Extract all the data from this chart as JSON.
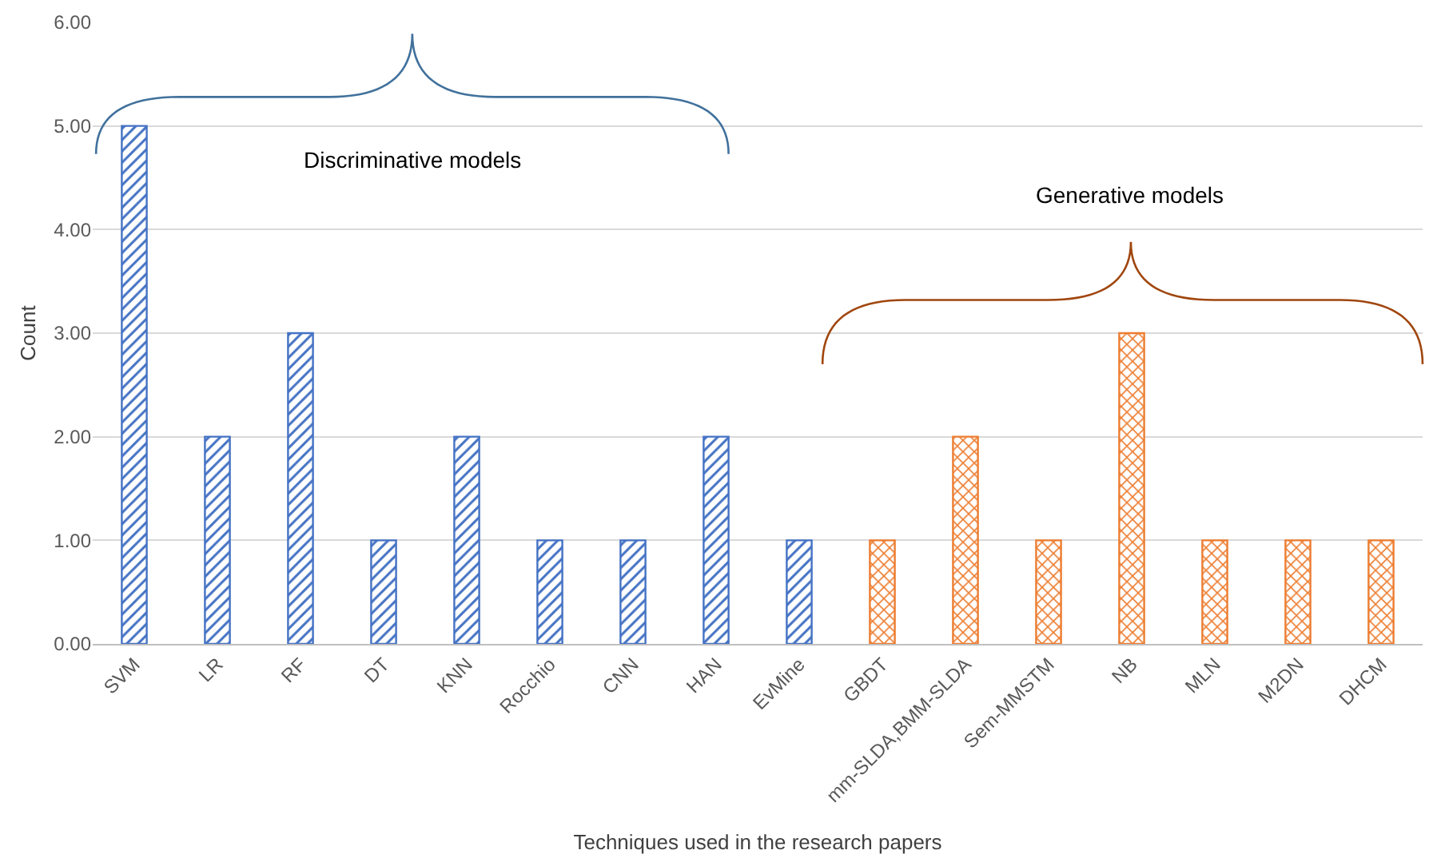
{
  "chart_data": {
    "type": "bar",
    "xlabel": "Techniques used in the research papers",
    "ylabel": "Count",
    "categories": [
      "SVM",
      "LR",
      "RF",
      "DT",
      "KNN",
      "Rocchio",
      "CNN",
      "HAN",
      "EvMine",
      "GBDT",
      "mm-SLDA,BMM-SLDA",
      "Sem-MMSTM",
      "NB",
      "MLN",
      "M2DN",
      "DHCM"
    ],
    "values": [
      5,
      2,
      3,
      1,
      2,
      1,
      1,
      2,
      1,
      1,
      2,
      1,
      3,
      1,
      1,
      1
    ],
    "colors": [
      "#4472c4",
      "#4472c4",
      "#4472c4",
      "#4472c4",
      "#4472c4",
      "#4472c4",
      "#4472c4",
      "#4472c4",
      "#4472c4",
      "#ed7d31",
      "#ed7d31",
      "#ed7d31",
      "#ed7d31",
      "#ed7d31",
      "#ed7d31",
      "#ed7d31"
    ],
    "ylim": [
      0,
      6
    ],
    "yticks": [
      {
        "value": 0,
        "label": "0.00"
      },
      {
        "value": 1,
        "label": "1.00"
      },
      {
        "value": 2,
        "label": "2.00"
      },
      {
        "value": 3,
        "label": "3.00"
      },
      {
        "value": 4,
        "label": "4.00"
      },
      {
        "value": 5,
        "label": "5.00"
      },
      {
        "value": 6,
        "label": "6.00"
      }
    ],
    "grid": "y",
    "annotations": [
      "Discriminative models",
      "Generative models"
    ]
  }
}
